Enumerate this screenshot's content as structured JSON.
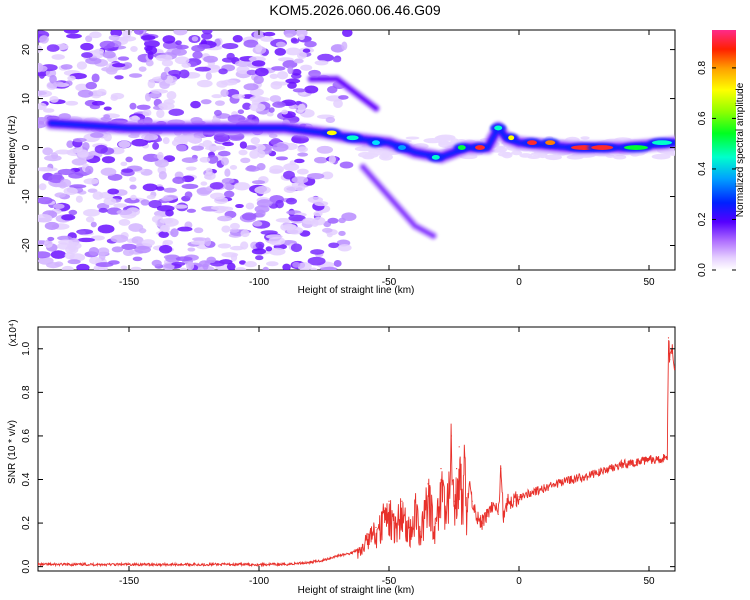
{
  "title": "KOM5.2026.060.06.46.G09",
  "colorbar": {
    "label": "Normalized spectral amplitude",
    "ticks": [
      "0.0",
      "0.2",
      "0.4",
      "0.6",
      "0.8"
    ],
    "tick_values": [
      0.0,
      0.2,
      0.4,
      0.6,
      0.8
    ],
    "range": [
      0.0,
      0.95
    ]
  },
  "chart_data": [
    {
      "type": "heatmap",
      "xlabel": "Height of straight line (km)",
      "ylabel": "Frequency (Hz)",
      "xlim": [
        -185,
        60
      ],
      "ylim": [
        -25,
        24
      ],
      "xticks": [
        -150,
        -100,
        -50,
        0,
        50
      ],
      "xtick_labels": [
        "-150",
        "-100",
        "-50",
        "0",
        "50"
      ],
      "yticks": [
        -20,
        -10,
        0,
        10,
        20
      ],
      "ytick_labels": [
        "-20",
        "-10",
        "0",
        "10",
        "20"
      ],
      "features": [
        {
          "name": "main tonal band",
          "points": [
            [
              -180,
              5
            ],
            [
              -150,
              4
            ],
            [
              -120,
              4
            ],
            [
              -90,
              4
            ],
            [
              -75,
              3
            ],
            [
              -65,
              2
            ],
            [
              -50,
              1
            ],
            [
              -40,
              -1
            ],
            [
              -30,
              -2
            ],
            [
              -20,
              0
            ],
            [
              -12,
              0
            ],
            [
              -8,
              4
            ],
            [
              -5,
              2
            ],
            [
              0,
              1
            ],
            [
              20,
              0
            ],
            [
              40,
              0
            ],
            [
              60,
              1
            ]
          ]
        },
        {
          "name": "upper branch",
          "points": [
            [
              -80,
              14
            ],
            [
              -70,
              14
            ],
            [
              -60,
              10
            ],
            [
              -55,
              8
            ]
          ]
        },
        {
          "name": "lower branch",
          "points": [
            [
              -60,
              -4
            ],
            [
              -50,
              -10
            ],
            [
              -40,
              -16
            ],
            [
              -33,
              -18
            ]
          ]
        }
      ]
    },
    {
      "type": "line",
      "xlabel": "Height of straight line (km)",
      "ylabel": "SNR (10 * v/v)",
      "y_scale_label": "(x10⁴)",
      "xlim": [
        -185,
        60
      ],
      "ylim": [
        -0.02,
        1.1
      ],
      "xticks": [
        -150,
        -100,
        -50,
        0,
        50
      ],
      "xtick_labels": [
        "-150",
        "-100",
        "-50",
        "0",
        "50"
      ],
      "yticks": [
        0.0,
        0.2,
        0.4,
        0.6,
        0.8,
        1.0
      ],
      "ytick_labels": [
        "0.0",
        "0.2",
        "0.4",
        "0.6",
        "0.8",
        "1.0"
      ],
      "series": [
        {
          "color": "#e8302a",
          "x": [
            -185,
            -170,
            -150,
            -130,
            -110,
            -90,
            -80,
            -75,
            -70,
            -65,
            -62,
            -60,
            -58,
            -55,
            -52,
            -50,
            -48,
            -45,
            -42,
            -40,
            -38,
            -35,
            -32,
            -30,
            -28,
            -26,
            -25,
            -24,
            -23,
            -22,
            -21,
            -20,
            -19,
            -18,
            -16,
            -14,
            -12,
            -10,
            -8,
            -7,
            -6,
            -5,
            -4,
            -2,
            0,
            5,
            10,
            15,
            20,
            25,
            30,
            35,
            40,
            45,
            50,
            54,
            56,
            57,
            57.5,
            58,
            59,
            60
          ],
          "y": [
            0.01,
            0.01,
            0.01,
            0.01,
            0.01,
            0.01,
            0.02,
            0.03,
            0.05,
            0.06,
            0.08,
            0.1,
            0.15,
            0.18,
            0.25,
            0.3,
            0.2,
            0.3,
            0.18,
            0.3,
            0.16,
            0.38,
            0.2,
            0.45,
            0.25,
            0.6,
            0.3,
            0.45,
            0.55,
            0.35,
            0.5,
            0.25,
            0.38,
            0.3,
            0.22,
            0.2,
            0.25,
            0.28,
            0.24,
            0.45,
            0.24,
            0.28,
            0.3,
            0.3,
            0.32,
            0.34,
            0.36,
            0.38,
            0.4,
            0.41,
            0.43,
            0.45,
            0.47,
            0.48,
            0.49,
            0.49,
            0.5,
            0.5,
            1.05,
            0.95,
            1.0,
            0.92
          ]
        }
      ]
    }
  ]
}
